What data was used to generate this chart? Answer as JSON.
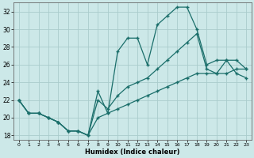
{
  "xlabel": "Humidex (Indice chaleur)",
  "bg_color": "#cce8e8",
  "grid_color": "#aacccc",
  "line_color": "#1a6e6a",
  "xlim": [
    -0.5,
    23.5
  ],
  "ylim": [
    17.5,
    33.0
  ],
  "xticks": [
    0,
    1,
    2,
    3,
    4,
    5,
    6,
    7,
    8,
    9,
    10,
    11,
    12,
    13,
    14,
    15,
    16,
    17,
    18,
    19,
    20,
    21,
    22,
    23
  ],
  "yticks": [
    18,
    20,
    22,
    24,
    26,
    28,
    30,
    32
  ],
  "line1_x": [
    0,
    1,
    2,
    3,
    4,
    5,
    6,
    7,
    8,
    9,
    10,
    11,
    12,
    13,
    14,
    15,
    16,
    17,
    18,
    19,
    20,
    21,
    22,
    23
  ],
  "line1_y": [
    22.0,
    20.5,
    20.5,
    20.0,
    19.5,
    18.5,
    18.5,
    18.0,
    23.0,
    20.5,
    27.5,
    29.0,
    29.0,
    26.0,
    30.5,
    31.5,
    32.5,
    32.5,
    30.0,
    26.0,
    26.5,
    26.5,
    25.0,
    24.5
  ],
  "line2_x": [
    0,
    1,
    2,
    3,
    4,
    5,
    6,
    7,
    8,
    9,
    10,
    11,
    12,
    13,
    14,
    15,
    16,
    17,
    18,
    19,
    20,
    21,
    22,
    23
  ],
  "line2_y": [
    22.0,
    20.5,
    20.5,
    20.0,
    19.5,
    18.5,
    18.5,
    18.0,
    22.0,
    21.0,
    22.5,
    23.5,
    24.0,
    24.5,
    25.5,
    26.5,
    27.5,
    28.5,
    29.5,
    25.5,
    25.0,
    26.5,
    26.5,
    25.5
  ],
  "line3_x": [
    0,
    1,
    2,
    3,
    4,
    5,
    6,
    7,
    8,
    9,
    10,
    11,
    12,
    13,
    14,
    15,
    16,
    17,
    18,
    19,
    20,
    21,
    22,
    23
  ],
  "line3_y": [
    22.0,
    20.5,
    20.5,
    20.0,
    19.5,
    18.5,
    18.5,
    18.0,
    20.0,
    20.5,
    21.0,
    21.5,
    22.0,
    22.5,
    23.0,
    23.5,
    24.0,
    24.5,
    25.0,
    25.0,
    25.0,
    25.0,
    25.5,
    25.5
  ]
}
